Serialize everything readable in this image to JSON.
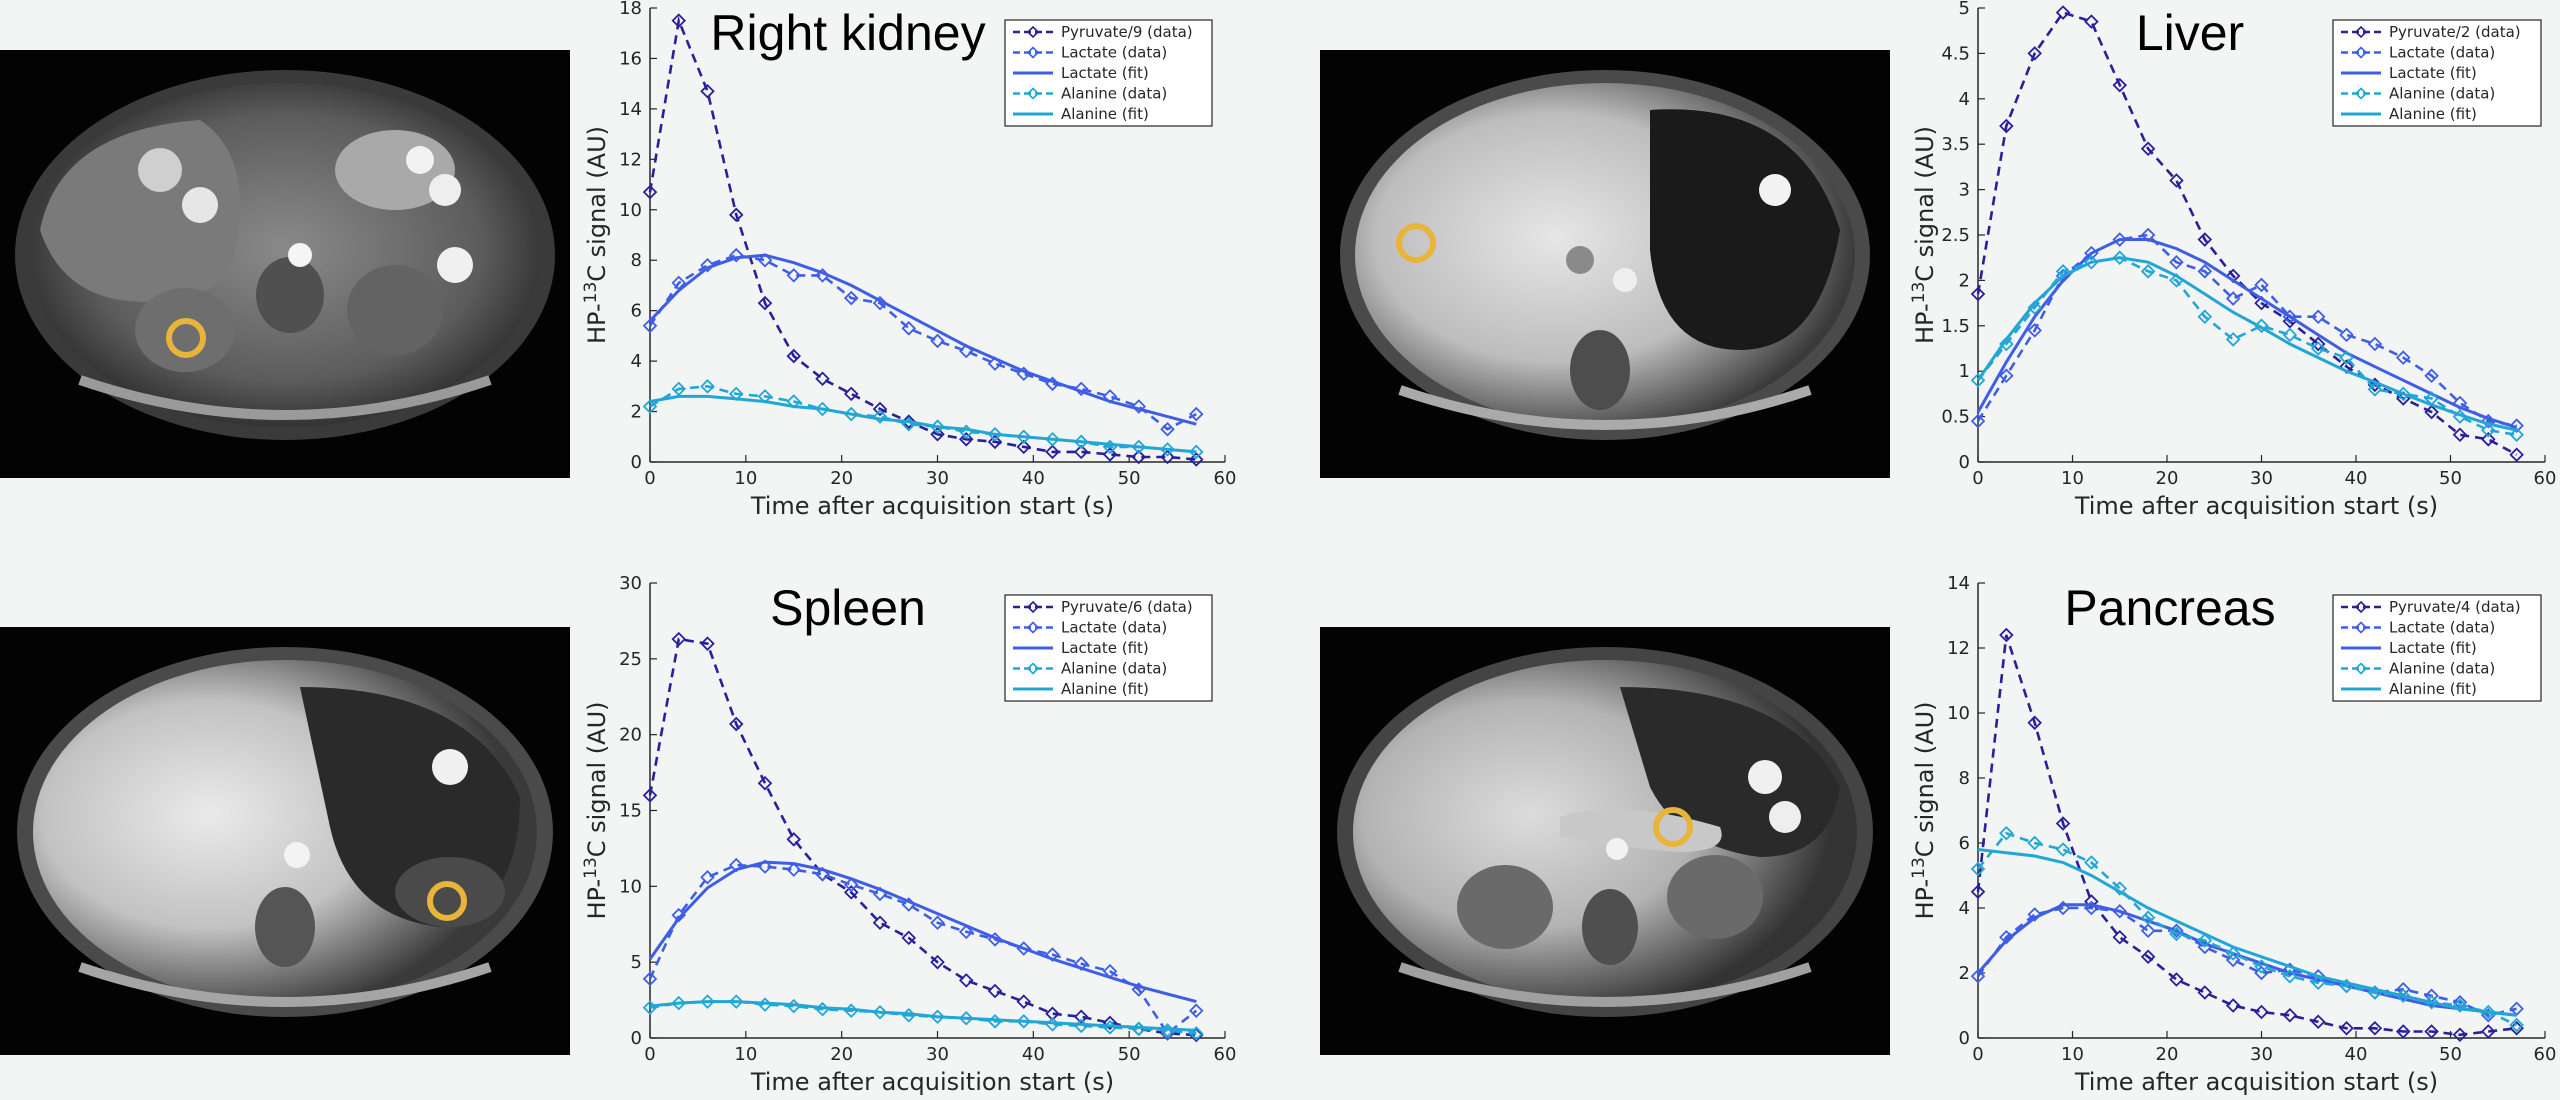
{
  "colors": {
    "pyruvate": "#27209a",
    "lactate": "#3f5ee6",
    "alanine": "#21a6d6",
    "roi": "#e8b43a"
  },
  "icons": {
    "roi": "orange-circle-roi-icon"
  },
  "chart_data": [
    {
      "type": "line",
      "title": "Right kidney",
      "xlabel": "Time after acquisition start (s)",
      "ylabel": "HP-13C signal (AU)",
      "xlim": [
        0,
        60
      ],
      "ylim": [
        0,
        18
      ],
      "xticks": [
        0,
        10,
        20,
        30,
        40,
        50,
        60
      ],
      "yticks": [
        0,
        2,
        4,
        6,
        8,
        10,
        12,
        14,
        16,
        18
      ],
      "grid": false,
      "legend": "top-right",
      "series": [
        {
          "name": "Pyruvate/9 (data)",
          "style": "dashed-marker",
          "color": "pyruvate",
          "x": [
            0,
            3,
            6,
            9,
            12,
            15,
            18,
            21,
            24,
            27,
            30,
            33,
            36,
            39,
            42,
            45,
            48,
            51,
            54,
            57
          ],
          "y": [
            10.7,
            17.5,
            14.7,
            9.8,
            6.3,
            4.2,
            3.3,
            2.7,
            2.1,
            1.6,
            1.1,
            0.9,
            0.8,
            0.6,
            0.4,
            0.4,
            0.3,
            0.2,
            0.2,
            0.1
          ]
        },
        {
          "name": "Lactate (data)",
          "style": "dashed-marker",
          "color": "lactate",
          "x": [
            0,
            3,
            6,
            9,
            12,
            15,
            18,
            21,
            24,
            27,
            30,
            33,
            36,
            39,
            42,
            45,
            48,
            51,
            54,
            57
          ],
          "y": [
            5.4,
            7.1,
            7.8,
            8.2,
            8.0,
            7.4,
            7.4,
            6.5,
            6.3,
            5.3,
            4.8,
            4.4,
            3.9,
            3.5,
            3.1,
            2.9,
            2.6,
            2.2,
            1.3,
            1.9
          ]
        },
        {
          "name": "Lactate (fit)",
          "style": "solid",
          "color": "lactate",
          "x": [
            0,
            3,
            6,
            9,
            12,
            15,
            18,
            21,
            24,
            27,
            30,
            33,
            36,
            39,
            42,
            45,
            48,
            51,
            54,
            57
          ],
          "y": [
            5.6,
            6.8,
            7.7,
            8.1,
            8.2,
            7.9,
            7.5,
            7.0,
            6.4,
            5.8,
            5.2,
            4.6,
            4.1,
            3.6,
            3.2,
            2.8,
            2.4,
            2.1,
            1.8,
            1.5
          ]
        },
        {
          "name": "Alanine (data)",
          "style": "dashed-marker",
          "color": "alanine",
          "x": [
            0,
            3,
            6,
            9,
            12,
            15,
            18,
            21,
            24,
            27,
            30,
            33,
            36,
            39,
            42,
            45,
            48,
            51,
            54,
            57
          ],
          "y": [
            2.2,
            2.9,
            3.0,
            2.7,
            2.6,
            2.4,
            2.1,
            1.9,
            1.8,
            1.5,
            1.4,
            1.2,
            1.1,
            1.0,
            0.9,
            0.8,
            0.6,
            0.6,
            0.5,
            0.4
          ]
        },
        {
          "name": "Alanine (fit)",
          "style": "solid",
          "color": "alanine",
          "x": [
            0,
            3,
            6,
            9,
            12,
            15,
            18,
            21,
            24,
            27,
            30,
            33,
            36,
            39,
            42,
            45,
            48,
            51,
            54,
            57
          ],
          "y": [
            2.4,
            2.6,
            2.6,
            2.5,
            2.4,
            2.2,
            2.1,
            1.9,
            1.7,
            1.6,
            1.4,
            1.3,
            1.1,
            1.0,
            0.9,
            0.8,
            0.7,
            0.6,
            0.5,
            0.4
          ]
        }
      ]
    },
    {
      "type": "line",
      "title": "Liver",
      "xlabel": "Time after acquisition start (s)",
      "ylabel": "HP-13C signal (AU)",
      "xlim": [
        0,
        60
      ],
      "ylim": [
        0,
        5
      ],
      "xticks": [
        0,
        10,
        20,
        30,
        40,
        50,
        60
      ],
      "yticks": [
        0,
        0.5,
        1,
        1.5,
        2,
        2.5,
        3,
        3.5,
        4,
        4.5,
        5
      ],
      "grid": false,
      "legend": "top-right",
      "series": [
        {
          "name": "Pyruvate/2 (data)",
          "style": "dashed-marker",
          "color": "pyruvate",
          "x": [
            0,
            3,
            6,
            9,
            12,
            15,
            18,
            21,
            24,
            27,
            30,
            33,
            36,
            39,
            42,
            45,
            48,
            51,
            54,
            57
          ],
          "y": [
            1.85,
            3.7,
            4.5,
            4.95,
            4.85,
            4.15,
            3.45,
            3.1,
            2.45,
            2.05,
            1.75,
            1.55,
            1.3,
            1.05,
            0.85,
            0.7,
            0.55,
            0.3,
            0.25,
            0.08
          ]
        },
        {
          "name": "Lactate (data)",
          "style": "dashed-marker",
          "color": "lactate",
          "x": [
            0,
            3,
            6,
            9,
            12,
            15,
            18,
            21,
            24,
            27,
            30,
            33,
            36,
            39,
            42,
            45,
            48,
            51,
            54,
            57
          ],
          "y": [
            0.45,
            0.95,
            1.45,
            2.05,
            2.3,
            2.45,
            2.5,
            2.2,
            2.1,
            1.8,
            1.95,
            1.6,
            1.6,
            1.4,
            1.3,
            1.15,
            0.95,
            0.65,
            0.45,
            0.4
          ]
        },
        {
          "name": "Lactate (fit)",
          "style": "solid",
          "color": "lactate",
          "x": [
            0,
            3,
            6,
            9,
            12,
            15,
            18,
            21,
            24,
            27,
            30,
            33,
            36,
            39,
            42,
            45,
            48,
            51,
            54,
            57
          ],
          "y": [
            0.55,
            1.1,
            1.6,
            2.0,
            2.3,
            2.45,
            2.45,
            2.35,
            2.2,
            2.0,
            1.8,
            1.6,
            1.4,
            1.2,
            1.05,
            0.9,
            0.75,
            0.6,
            0.48,
            0.38
          ]
        },
        {
          "name": "Alanine (data)",
          "style": "dashed-marker",
          "color": "alanine",
          "x": [
            0,
            3,
            6,
            9,
            12,
            15,
            18,
            21,
            24,
            27,
            30,
            33,
            36,
            39,
            42,
            45,
            48,
            51,
            54,
            57
          ],
          "y": [
            0.9,
            1.3,
            1.7,
            2.1,
            2.2,
            2.25,
            2.1,
            2.0,
            1.6,
            1.35,
            1.5,
            1.4,
            1.25,
            1.15,
            0.8,
            0.75,
            0.7,
            0.5,
            0.35,
            0.3
          ]
        },
        {
          "name": "Alanine (fit)",
          "style": "solid",
          "color": "alanine",
          "x": [
            0,
            3,
            6,
            9,
            12,
            15,
            18,
            21,
            24,
            27,
            30,
            33,
            36,
            39,
            42,
            45,
            48,
            51,
            54,
            57
          ],
          "y": [
            0.9,
            1.35,
            1.75,
            2.05,
            2.2,
            2.25,
            2.2,
            2.05,
            1.85,
            1.65,
            1.48,
            1.3,
            1.15,
            1.0,
            0.88,
            0.75,
            0.63,
            0.52,
            0.42,
            0.35
          ]
        }
      ]
    },
    {
      "type": "line",
      "title": "Spleen",
      "xlabel": "Time after acquisition start (s)",
      "ylabel": "HP-13C signal (AU)",
      "xlim": [
        0,
        60
      ],
      "ylim": [
        0,
        30
      ],
      "xticks": [
        0,
        10,
        20,
        30,
        40,
        50,
        60
      ],
      "yticks": [
        0,
        5,
        10,
        15,
        20,
        25,
        30
      ],
      "grid": false,
      "legend": "top-right",
      "series": [
        {
          "name": "Pyruvate/6 (data)",
          "style": "dashed-marker",
          "color": "pyruvate",
          "x": [
            0,
            3,
            6,
            9,
            12,
            15,
            18,
            21,
            24,
            27,
            30,
            33,
            36,
            39,
            42,
            45,
            48,
            51,
            54,
            57
          ],
          "y": [
            16.0,
            26.3,
            26.0,
            20.7,
            16.8,
            13.1,
            10.8,
            9.6,
            7.6,
            6.6,
            5.0,
            3.8,
            3.1,
            2.4,
            1.6,
            1.4,
            1.0,
            0.6,
            0.3,
            0.2
          ]
        },
        {
          "name": "Lactate (data)",
          "style": "dashed-marker",
          "color": "lactate",
          "x": [
            0,
            3,
            6,
            9,
            12,
            15,
            18,
            21,
            24,
            27,
            30,
            33,
            36,
            39,
            42,
            45,
            48,
            51,
            54,
            57
          ],
          "y": [
            3.9,
            8.1,
            10.6,
            11.4,
            11.3,
            11.1,
            10.8,
            10.1,
            9.5,
            8.8,
            7.6,
            7.0,
            6.5,
            5.9,
            5.5,
            4.9,
            4.4,
            3.2,
            0.3,
            1.8
          ]
        },
        {
          "name": "Lactate (fit)",
          "style": "solid",
          "color": "lactate",
          "x": [
            0,
            3,
            6,
            9,
            12,
            15,
            18,
            21,
            24,
            27,
            30,
            33,
            36,
            39,
            42,
            45,
            48,
            51,
            54,
            57
          ],
          "y": [
            5.2,
            7.9,
            9.9,
            11.1,
            11.6,
            11.5,
            11.1,
            10.5,
            9.8,
            9.0,
            8.2,
            7.4,
            6.6,
            5.9,
            5.2,
            4.6,
            4.0,
            3.4,
            2.9,
            2.4
          ]
        },
        {
          "name": "Alanine (data)",
          "style": "dashed-marker",
          "color": "alanine",
          "x": [
            0,
            3,
            6,
            9,
            12,
            15,
            18,
            21,
            24,
            27,
            30,
            33,
            36,
            39,
            42,
            45,
            48,
            51,
            54,
            57
          ],
          "y": [
            2.0,
            2.3,
            2.4,
            2.4,
            2.2,
            2.1,
            1.9,
            1.8,
            1.7,
            1.5,
            1.4,
            1.3,
            1.1,
            1.1,
            0.9,
            0.8,
            0.7,
            0.6,
            0.5,
            0.3
          ]
        },
        {
          "name": "Alanine (fit)",
          "style": "solid",
          "color": "alanine",
          "x": [
            0,
            3,
            6,
            9,
            12,
            15,
            18,
            21,
            24,
            27,
            30,
            33,
            36,
            39,
            42,
            45,
            48,
            51,
            54,
            57
          ],
          "y": [
            2.1,
            2.3,
            2.4,
            2.4,
            2.3,
            2.2,
            2.0,
            1.9,
            1.7,
            1.6,
            1.4,
            1.3,
            1.2,
            1.1,
            1.0,
            0.9,
            0.8,
            0.7,
            0.6,
            0.5
          ]
        }
      ]
    },
    {
      "type": "line",
      "title": "Pancreas",
      "xlabel": "Time after acquisition start (s)",
      "ylabel": "HP-13C signal (AU)",
      "xlim": [
        0,
        60
      ],
      "ylim": [
        0,
        14
      ],
      "xticks": [
        0,
        10,
        20,
        30,
        40,
        50,
        60
      ],
      "yticks": [
        0,
        2,
        4,
        6,
        8,
        10,
        12,
        14
      ],
      "grid": false,
      "legend": "top-right",
      "series": [
        {
          "name": "Pyruvate/4 (data)",
          "style": "dashed-marker",
          "color": "pyruvate",
          "x": [
            0,
            3,
            6,
            9,
            12,
            15,
            18,
            21,
            24,
            27,
            30,
            33,
            36,
            39,
            42,
            45,
            48,
            51,
            54,
            57
          ],
          "y": [
            4.5,
            12.4,
            9.7,
            6.6,
            4.2,
            3.1,
            2.5,
            1.8,
            1.4,
            1.0,
            0.8,
            0.7,
            0.5,
            0.3,
            0.3,
            0.2,
            0.2,
            0.1,
            0.2,
            0.3
          ]
        },
        {
          "name": "Lactate (data)",
          "style": "dashed-marker",
          "color": "lactate",
          "x": [
            0,
            3,
            6,
            9,
            12,
            15,
            18,
            21,
            24,
            27,
            30,
            33,
            36,
            39,
            42,
            45,
            48,
            51,
            54,
            57
          ],
          "y": [
            1.9,
            3.1,
            3.8,
            4.0,
            4.0,
            3.9,
            3.3,
            3.3,
            2.8,
            2.4,
            2.0,
            2.1,
            1.9,
            1.6,
            1.4,
            1.5,
            1.3,
            1.1,
            0.7,
            0.9
          ]
        },
        {
          "name": "Lactate (fit)",
          "style": "solid",
          "color": "lactate",
          "x": [
            0,
            3,
            6,
            9,
            12,
            15,
            18,
            21,
            24,
            27,
            30,
            33,
            36,
            39,
            42,
            45,
            48,
            51,
            54,
            57
          ],
          "y": [
            2.0,
            3.0,
            3.7,
            4.1,
            4.1,
            3.9,
            3.6,
            3.3,
            2.9,
            2.6,
            2.3,
            2.0,
            1.8,
            1.6,
            1.4,
            1.2,
            1.0,
            0.9,
            0.8,
            0.7
          ]
        },
        {
          "name": "Alanine (data)",
          "style": "dashed-marker",
          "color": "alanine",
          "x": [
            0,
            3,
            6,
            9,
            12,
            15,
            18,
            21,
            24,
            27,
            30,
            33,
            36,
            39,
            42,
            45,
            48,
            51,
            54,
            57
          ],
          "y": [
            5.2,
            6.3,
            6.0,
            5.8,
            5.4,
            4.6,
            3.7,
            3.2,
            3.0,
            2.6,
            2.2,
            1.9,
            1.7,
            1.6,
            1.4,
            1.3,
            1.1,
            1.0,
            0.8,
            0.4
          ]
        },
        {
          "name": "Alanine (fit)",
          "style": "solid",
          "color": "alanine",
          "x": [
            0,
            3,
            6,
            9,
            12,
            15,
            18,
            21,
            24,
            27,
            30,
            33,
            36,
            39,
            42,
            45,
            48,
            51,
            54,
            57
          ],
          "y": [
            5.8,
            5.7,
            5.6,
            5.4,
            5.0,
            4.5,
            4.0,
            3.6,
            3.2,
            2.8,
            2.5,
            2.2,
            1.9,
            1.7,
            1.5,
            1.3,
            1.1,
            0.9,
            0.8,
            0.7
          ]
        }
      ]
    }
  ]
}
